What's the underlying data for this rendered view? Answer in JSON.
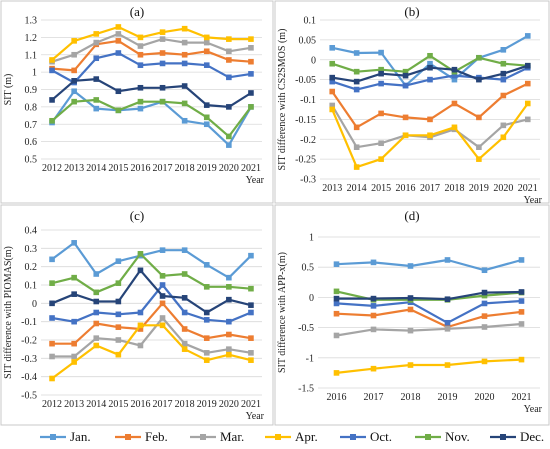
{
  "colors": {
    "Jan.": "#5b9bd5",
    "Feb.": "#ed7d31",
    "Mar.": "#a5a5a5",
    "Apr.": "#ffc000",
    "Oct.": "#4472c4",
    "Nov.": "#70ad47",
    "Dec.": "#264478"
  },
  "legend": [
    "Jan.",
    "Feb.",
    "Mar.",
    "Apr.",
    "Oct.",
    "Nov.",
    "Dec."
  ],
  "chart_data": [
    {
      "panel": "(a)",
      "type": "line",
      "ylabel": "SIT (m)",
      "xlabel": "Year",
      "x": [
        "2012",
        "2013",
        "2014",
        "2015",
        "2016",
        "2017",
        "2018",
        "2019",
        "2020",
        "2021"
      ],
      "ylim": [
        0.5,
        1.3
      ],
      "yticks": [
        "0.5",
        "0.6",
        "0.7",
        "0.8",
        "0.9",
        "1",
        "1.1",
        "1.2",
        "1.3"
      ],
      "grid": true,
      "series": [
        {
          "name": "Jan.",
          "values": [
            0.71,
            0.89,
            0.79,
            0.78,
            0.79,
            0.83,
            0.72,
            0.7,
            0.58,
            0.8
          ]
        },
        {
          "name": "Feb.",
          "values": [
            1.02,
            1.01,
            1.16,
            1.18,
            1.1,
            1.11,
            1.1,
            1.12,
            1.07,
            1.06
          ]
        },
        {
          "name": "Mar.",
          "values": [
            1.06,
            1.1,
            1.17,
            1.22,
            1.15,
            1.19,
            1.17,
            1.17,
            1.12,
            1.14
          ]
        },
        {
          "name": "Apr.",
          "values": [
            1.07,
            1.18,
            1.22,
            1.26,
            1.2,
            1.23,
            1.25,
            1.2,
            1.19,
            1.19
          ]
        },
        {
          "name": "Oct.",
          "values": [
            1.01,
            0.94,
            1.08,
            1.11,
            1.04,
            1.05,
            1.05,
            1.04,
            0.97,
            0.99
          ]
        },
        {
          "name": "Nov.",
          "values": [
            0.72,
            0.83,
            0.84,
            0.78,
            0.83,
            0.83,
            0.82,
            0.74,
            0.63,
            0.8
          ]
        },
        {
          "name": "Dec.",
          "values": [
            0.84,
            0.95,
            0.96,
            0.89,
            0.91,
            0.91,
            0.92,
            0.81,
            0.8,
            0.88
          ]
        }
      ]
    },
    {
      "panel": "(b)",
      "type": "line",
      "ylabel": "SIT difference with CS2SMOS (m)",
      "xlabel": "Year",
      "x": [
        "2013",
        "2014",
        "2015",
        "2016",
        "2017",
        "2018",
        "2019",
        "2020",
        "2021"
      ],
      "ylim": [
        -0.3,
        0.1
      ],
      "yticks": [
        "-0.3",
        "-0.25",
        "-0.2",
        "-0.15",
        "-0.1",
        "-0.05",
        "0",
        "0.05",
        "0.1"
      ],
      "grid": true,
      "series": [
        {
          "name": "Jan.",
          "values": [
            0.03,
            0.017,
            0.018,
            -0.065,
            -0.01,
            -0.05,
            0.005,
            0.025,
            0.06
          ]
        },
        {
          "name": "Feb.",
          "values": [
            -0.08,
            -0.17,
            -0.135,
            -0.145,
            -0.15,
            -0.11,
            -0.145,
            -0.09,
            -0.06
          ]
        },
        {
          "name": "Mar.",
          "values": [
            -0.115,
            -0.22,
            -0.21,
            -0.19,
            -0.195,
            -0.175,
            -0.22,
            -0.165,
            -0.15
          ]
        },
        {
          "name": "Apr.",
          "values": [
            -0.125,
            -0.27,
            -0.25,
            -0.19,
            -0.19,
            -0.17,
            -0.25,
            -0.195,
            -0.11
          ]
        },
        {
          "name": "Oct.",
          "values": [
            -0.055,
            -0.075,
            -0.06,
            -0.065,
            -0.05,
            -0.04,
            -0.045,
            -0.05,
            -0.02
          ]
        },
        {
          "name": "Nov.",
          "values": [
            -0.01,
            -0.03,
            -0.025,
            -0.03,
            0.01,
            -0.03,
            0.005,
            -0.01,
            -0.015
          ]
        },
        {
          "name": "Dec.",
          "values": [
            -0.045,
            -0.055,
            -0.035,
            -0.04,
            -0.02,
            -0.025,
            -0.05,
            -0.035,
            -0.015
          ]
        }
      ]
    },
    {
      "panel": "(c)",
      "type": "line",
      "ylabel": "SIT difference with PIOMAS(m)",
      "xlabel": "Year",
      "x": [
        "2012",
        "2013",
        "2014",
        "2015",
        "2016",
        "2017",
        "2018",
        "2019",
        "2020",
        "2021"
      ],
      "ylim": [
        -0.5,
        0.4
      ],
      "yticks": [
        "-0.5",
        "-0.4",
        "-0.3",
        "-0.2",
        "-0.1",
        "0",
        "0.1",
        "0.2",
        "0.3",
        "0.4"
      ],
      "grid": true,
      "series": [
        {
          "name": "Jan.",
          "values": [
            0.24,
            0.33,
            0.16,
            0.23,
            0.26,
            0.29,
            0.29,
            0.21,
            0.14,
            0.26
          ]
        },
        {
          "name": "Feb.",
          "values": [
            -0.22,
            -0.22,
            -0.11,
            -0.13,
            -0.14,
            0.0,
            -0.14,
            -0.19,
            -0.17,
            -0.19
          ]
        },
        {
          "name": "Mar.",
          "values": [
            -0.29,
            -0.29,
            -0.19,
            -0.2,
            -0.23,
            -0.08,
            -0.22,
            -0.27,
            -0.25,
            -0.27
          ]
        },
        {
          "name": "Apr.",
          "values": [
            -0.41,
            -0.32,
            -0.23,
            -0.28,
            -0.12,
            -0.12,
            -0.25,
            -0.31,
            -0.28,
            -0.31
          ]
        },
        {
          "name": "Oct.",
          "values": [
            -0.08,
            -0.1,
            -0.05,
            -0.06,
            -0.05,
            0.1,
            -0.05,
            -0.09,
            -0.1,
            -0.05
          ]
        },
        {
          "name": "Nov.",
          "values": [
            0.11,
            0.14,
            0.06,
            0.11,
            0.27,
            0.15,
            0.16,
            0.09,
            0.09,
            0.08
          ]
        },
        {
          "name": "Dec.",
          "values": [
            0.0,
            0.05,
            0.01,
            0.01,
            0.18,
            0.04,
            0.03,
            -0.05,
            0.02,
            -0.01
          ]
        }
      ]
    },
    {
      "panel": "(d)",
      "type": "line",
      "ylabel": "SIT difference with APP-x(m)",
      "xlabel": "Year",
      "x": [
        "2016",
        "2017",
        "2018",
        "2019",
        "2020",
        "2021"
      ],
      "ylim": [
        -1.5,
        1.0
      ],
      "yticks": [
        "-1.5",
        "-1",
        "-0.5",
        "0",
        "0.5",
        "1"
      ],
      "grid": true,
      "series": [
        {
          "name": "Jan.",
          "values": [
            0.55,
            0.58,
            0.52,
            0.62,
            0.45,
            0.62
          ]
        },
        {
          "name": "Feb.",
          "values": [
            -0.27,
            -0.3,
            -0.2,
            -0.49,
            -0.31,
            -0.24
          ]
        },
        {
          "name": "Mar.",
          "values": [
            -0.63,
            -0.53,
            -0.55,
            -0.52,
            -0.49,
            -0.44
          ]
        },
        {
          "name": "Apr.",
          "values": [
            -1.25,
            -1.18,
            -1.12,
            -1.12,
            -1.06,
            -1.03
          ]
        },
        {
          "name": "Oct.",
          "values": [
            -0.1,
            -0.14,
            -0.08,
            -0.42,
            -0.1,
            -0.06
          ]
        },
        {
          "name": "Nov.",
          "values": [
            0.1,
            -0.04,
            -0.04,
            -0.04,
            0.03,
            0.08
          ]
        },
        {
          "name": "Dec.",
          "values": [
            -0.02,
            -0.02,
            -0.01,
            -0.03,
            0.08,
            0.09
          ]
        }
      ]
    }
  ]
}
